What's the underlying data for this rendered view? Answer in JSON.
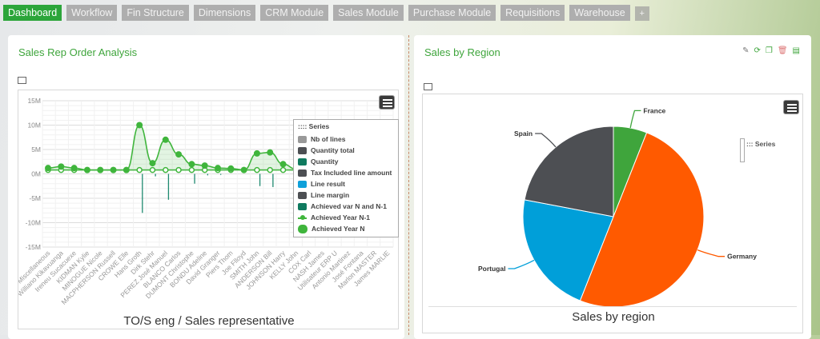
{
  "tabs": [
    {
      "label": "Dashboard",
      "active": true
    },
    {
      "label": "Workflow"
    },
    {
      "label": "Fin Structure"
    },
    {
      "label": "Dimensions"
    },
    {
      "label": "CRM Module"
    },
    {
      "label": "Sales Module"
    },
    {
      "label": "Purchase Module"
    },
    {
      "label": "Requisitions"
    },
    {
      "label": "Warehouse"
    },
    {
      "label": "+"
    }
  ],
  "left_panel": {
    "title": "Sales Rep Order Analysis"
  },
  "right_panel": {
    "title": "Sales by Region",
    "icons": [
      "pencil-icon",
      "refresh-icon",
      "window-icon",
      "trash-icon",
      "list-icon"
    ]
  },
  "colors": {
    "accent": "#3fa53c",
    "active_tab": "#2ca53a"
  },
  "chart_data": [
    {
      "type": "line",
      "title": "TO/S eng / Sales representative",
      "ylim": [
        -15,
        15
      ],
      "yunit": "M",
      "yticks": [
        "15M",
        "10M",
        "5M",
        "0M",
        "-5M",
        "-10M",
        "-15M"
      ],
      "grid": true,
      "legend": {
        "title": ":::: Series",
        "placement": "right",
        "entries": [
          {
            "name": "Nb of lines",
            "color": "#999999"
          },
          {
            "name": "Quantity total",
            "color": "#4d4f53"
          },
          {
            "name": "Quantity",
            "color": "#0f7a5f"
          },
          {
            "name": "Tax Included line amount",
            "color": "#4d4f53"
          },
          {
            "name": "Line result",
            "color": "#0ea0da"
          },
          {
            "name": "Line margin",
            "color": "#4d4f53"
          },
          {
            "name": "Achieved var N and N-1",
            "color": "#0f7a5f"
          },
          {
            "name": "Achieved Year N-1",
            "color": "#3fb53c"
          },
          {
            "name": "Achieved Year N",
            "color": "#3fb53c"
          }
        ]
      },
      "categories": [
        "Miscellaneous",
        "Williano Kikavuanga",
        "Ireneu Sucacuexe",
        "KIDMAN Kylie",
        "MINOGUE Nicole",
        "MACPHERSON Russell",
        "CROWE Elle",
        "Hans Groth",
        "Dirk Stehr",
        "PEREZ José Manuel",
        "BLANCO Carlos",
        "DUMONT Christophe",
        "BONDU Adeline",
        "David Granger",
        "Piers Thom",
        "Joe Flloyd",
        "SMITH John",
        "ANDERSON Bill",
        "JOHNSON Harry",
        "KELLY John",
        "COX Carl",
        "NASH James",
        "Utilisateur ERP U",
        "Antonio Martinez",
        "José Fontana",
        "Marlon MASTER",
        "James MARLIE"
      ],
      "series": [
        {
          "name": "Achieved Year N",
          "values": [
            1.2,
            1.5,
            1.2,
            0.8,
            0.8,
            0.8,
            0.8,
            10,
            2.2,
            7,
            4,
            2,
            1.7,
            1.2,
            1.1,
            0.8,
            4.2,
            4.4,
            2,
            1,
            1,
            1,
            1,
            1,
            1,
            1,
            1
          ]
        },
        {
          "name": "Achieved Year N-1",
          "values": [
            0.8,
            0.8,
            0.8,
            0.8,
            0.8,
            0.8,
            0.8,
            0.8,
            0.8,
            0.8,
            0.8,
            0.8,
            0.8,
            0.8,
            0.8,
            0.8,
            0.8,
            0.8,
            0.8,
            0.8,
            0.8,
            0.8,
            0.8,
            0.8,
            0.8,
            0.8,
            0.8
          ]
        },
        {
          "name": "Achieved var N and N-1",
          "values": [
            0,
            0,
            0,
            0,
            0,
            0,
            0,
            -8,
            -0.5,
            -5.3,
            0,
            -2,
            -0.3,
            -0.2,
            0,
            0,
            -2.5,
            -2.7,
            0,
            0,
            0,
            0,
            0,
            0,
            0,
            0,
            0
          ]
        }
      ]
    },
    {
      "type": "pie",
      "title": "Sales by region",
      "legend": {
        "title": "::: Series"
      },
      "slices": [
        {
          "label": "France",
          "value": 6,
          "color": "#3fa53c"
        },
        {
          "label": "Germany",
          "value": 50,
          "color": "#ff5a00"
        },
        {
          "label": "Portugal",
          "value": 22,
          "color": "#009fd9"
        },
        {
          "label": "Spain",
          "value": 22,
          "color": "#4d4f53"
        }
      ]
    }
  ]
}
